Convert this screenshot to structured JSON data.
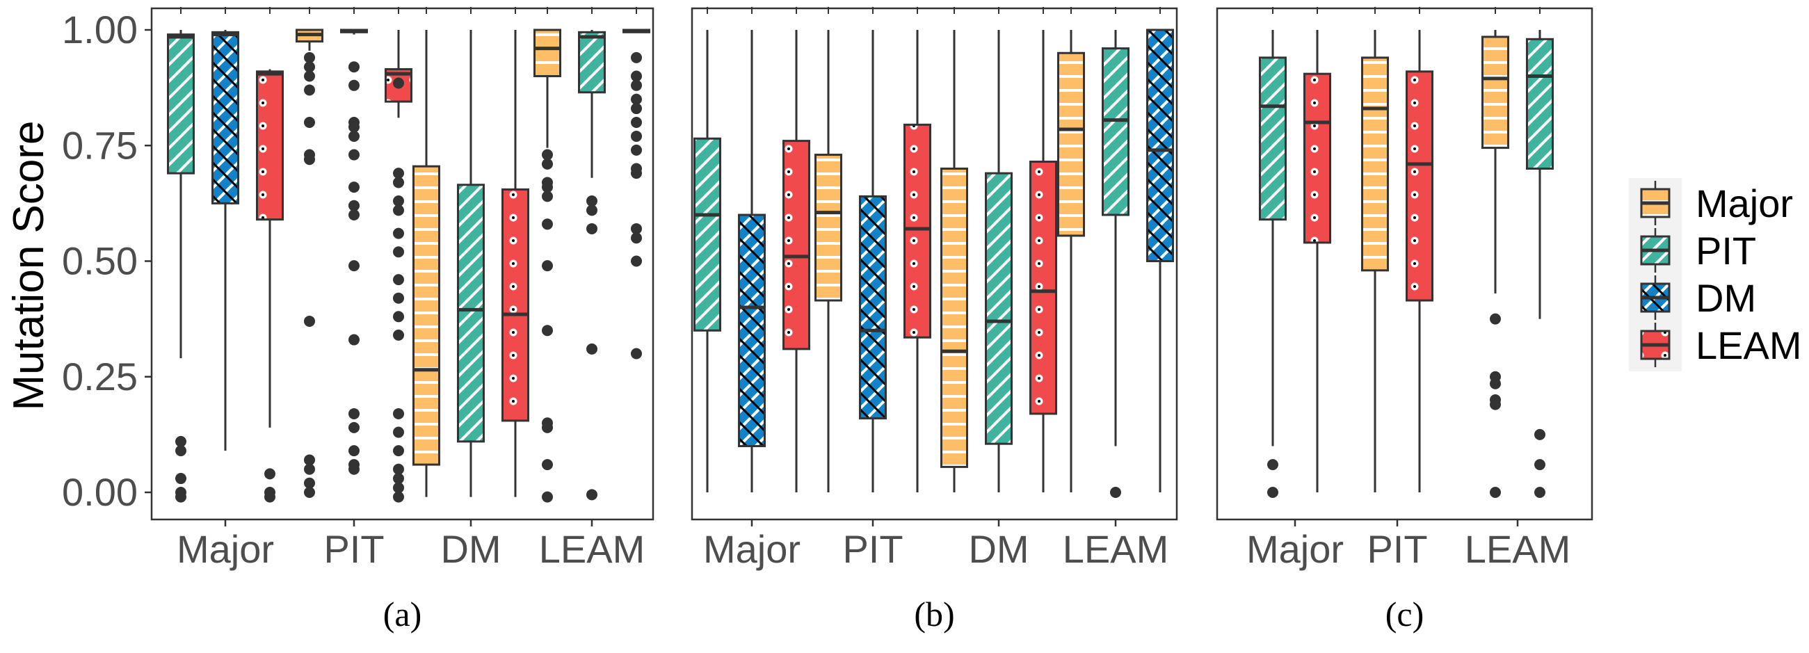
{
  "chart_data": {
    "type": "box",
    "ylabel": "Mutation Score",
    "ylim": [
      0,
      1
    ],
    "yticks": [
      0,
      0.25,
      0.5,
      0.75,
      1
    ],
    "ytick_labels": [
      "0.00",
      "0.25",
      "0.50",
      "0.75",
      "1.00"
    ],
    "colors": {
      "Major": "#FDBE67",
      "PIT": "#40B39E",
      "DM": "#1383C9",
      "LEAM": "#F04A4C"
    },
    "legend": {
      "position": "right",
      "entries": [
        "Major",
        "PIT",
        "DM",
        "LEAM"
      ]
    },
    "panels": [
      {
        "caption": "(a)",
        "categories": [
          "Major",
          "PIT",
          "DM",
          "LEAM"
        ],
        "groups": [
          {
            "category": "Major",
            "boxes": [
              {
                "series": "PIT",
                "q1": 0.69,
                "median": 0.985,
                "q3": 0.99,
                "lo": 0.29,
                "hi": 1.0,
                "outliers": [
                  0.11,
                  0.09,
                  0.03,
                  0.0,
                  -0.01
                ]
              },
              {
                "series": "DM",
                "q1": 0.625,
                "median": 0.99,
                "q3": 0.995,
                "lo": 0.09,
                "hi": 1.0,
                "outliers": []
              },
              {
                "series": "LEAM",
                "q1": 0.59,
                "median": 0.905,
                "q3": 0.91,
                "lo": 0.14,
                "hi": 0.915,
                "outliers": [
                  0.04,
                  0.0,
                  -0.01
                ]
              }
            ]
          },
          {
            "category": "PIT",
            "boxes": [
              {
                "series": "Major",
                "q1": 0.975,
                "median": 0.99,
                "q3": 1.0,
                "lo": 0.955,
                "hi": 1.0,
                "outliers": [
                  0.94,
                  0.92,
                  0.9,
                  0.87,
                  0.8,
                  0.73,
                  0.72,
                  0.37,
                  0.07,
                  0.05,
                  0.02,
                  0.0
                ]
              },
              {
                "series": "PIT",
                "q1": 0.995,
                "median": 0.998,
                "q3": 1.0,
                "lo": 0.99,
                "hi": 1.0,
                "outliers": [
                  0.92,
                  0.88,
                  0.8,
                  0.79,
                  0.77,
                  0.73,
                  0.66,
                  0.62,
                  0.6,
                  0.49,
                  0.33,
                  0.17,
                  0.14,
                  0.09,
                  0.06,
                  0.05
                ]
              },
              {
                "series": "LEAM",
                "q1": 0.845,
                "median": 0.905,
                "q3": 0.915,
                "lo": 0.81,
                "hi": 1.0,
                "outliers": [
                  0.885,
                  0.69,
                  0.67,
                  0.63,
                  0.61,
                  0.56,
                  0.52,
                  0.46,
                  0.42,
                  0.38,
                  0.34,
                  0.17,
                  0.13,
                  0.09,
                  0.05,
                  0.03,
                  0.01,
                  -0.01
                ]
              }
            ]
          },
          {
            "category": "DM",
            "boxes": [
              {
                "series": "Major",
                "q1": 0.06,
                "median": 0.265,
                "q3": 0.705,
                "lo": -0.01,
                "hi": 1.0,
                "outliers": []
              },
              {
                "series": "PIT",
                "q1": 0.11,
                "median": 0.395,
                "q3": 0.665,
                "lo": -0.01,
                "hi": 1.0,
                "outliers": []
              },
              {
                "series": "LEAM",
                "q1": 0.155,
                "median": 0.385,
                "q3": 0.655,
                "lo": -0.01,
                "hi": 1.0,
                "outliers": []
              }
            ]
          },
          {
            "category": "LEAM",
            "boxes": [
              {
                "series": "Major",
                "q1": 0.9,
                "median": 0.96,
                "q3": 1.0,
                "lo": 0.745,
                "hi": 1.0,
                "outliers": [
                  0.73,
                  0.71,
                  0.67,
                  0.66,
                  0.64,
                  0.58,
                  0.49,
                  0.35,
                  0.15,
                  0.14,
                  0.06,
                  -0.01
                ]
              },
              {
                "series": "PIT",
                "q1": 0.865,
                "median": 0.985,
                "q3": 0.995,
                "lo": 0.68,
                "hi": 1.0,
                "outliers": [
                  0.63,
                  0.61,
                  0.57,
                  0.31,
                  -0.005
                ]
              },
              {
                "series": "LEAM",
                "q1": 0.995,
                "median": 0.997,
                "q3": 1.0,
                "lo": 0.995,
                "hi": 1.0,
                "outliers": [
                  0.94,
                  0.9,
                  0.88,
                  0.85,
                  0.83,
                  0.8,
                  0.77,
                  0.74,
                  0.7,
                  0.69,
                  0.57,
                  0.55,
                  0.5,
                  0.3
                ]
              }
            ]
          }
        ]
      },
      {
        "caption": "(b)",
        "categories": [
          "Major",
          "PIT",
          "DM",
          "LEAM"
        ],
        "groups": [
          {
            "category": "Major",
            "boxes": [
              {
                "series": "PIT",
                "q1": 0.35,
                "median": 0.6,
                "q3": 0.765,
                "lo": 0.0,
                "hi": 1.0,
                "outliers": []
              },
              {
                "series": "DM",
                "q1": 0.1,
                "median": 0.4,
                "q3": 0.6,
                "lo": 0.0,
                "hi": 1.0,
                "outliers": []
              },
              {
                "series": "LEAM",
                "q1": 0.31,
                "median": 0.51,
                "q3": 0.76,
                "lo": 0.0,
                "hi": 1.0,
                "outliers": []
              }
            ]
          },
          {
            "category": "PIT",
            "boxes": [
              {
                "series": "Major",
                "q1": 0.415,
                "median": 0.605,
                "q3": 0.73,
                "lo": 0.0,
                "hi": 1.0,
                "outliers": []
              },
              {
                "series": "DM",
                "q1": 0.16,
                "median": 0.35,
                "q3": 0.64,
                "lo": 0.0,
                "hi": 1.0,
                "outliers": []
              },
              {
                "series": "LEAM",
                "q1": 0.335,
                "median": 0.57,
                "q3": 0.795,
                "lo": 0.0,
                "hi": 1.0,
                "outliers": []
              }
            ]
          },
          {
            "category": "DM",
            "boxes": [
              {
                "series": "Major",
                "q1": 0.055,
                "median": 0.305,
                "q3": 0.7,
                "lo": 0.0,
                "hi": 1.0,
                "outliers": []
              },
              {
                "series": "PIT",
                "q1": 0.105,
                "median": 0.37,
                "q3": 0.69,
                "lo": 0.0,
                "hi": 1.0,
                "outliers": []
              },
              {
                "series": "LEAM",
                "q1": 0.17,
                "median": 0.435,
                "q3": 0.715,
                "lo": 0.0,
                "hi": 1.0,
                "outliers": []
              }
            ]
          },
          {
            "category": "LEAM",
            "boxes": [
              {
                "series": "Major",
                "q1": 0.555,
                "median": 0.785,
                "q3": 0.95,
                "lo": 0.0,
                "hi": 1.0,
                "outliers": []
              },
              {
                "series": "PIT",
                "q1": 0.6,
                "median": 0.805,
                "q3": 0.96,
                "lo": 0.1,
                "hi": 1.0,
                "outliers": [
                  0.0
                ]
              },
              {
                "series": "DM",
                "q1": 0.5,
                "median": 0.74,
                "q3": 1.0,
                "lo": 0.0,
                "hi": 1.0,
                "outliers": []
              }
            ]
          }
        ]
      },
      {
        "caption": "(c)",
        "categories": [
          "Major",
          "PIT",
          "LEAM"
        ],
        "groups": [
          {
            "category": "Major",
            "boxes": [
              {
                "series": "PIT",
                "q1": 0.59,
                "median": 0.835,
                "q3": 0.94,
                "lo": 0.1,
                "hi": 1.0,
                "outliers": [
                  0.06,
                  0.0
                ]
              },
              {
                "series": "LEAM",
                "q1": 0.54,
                "median": 0.8,
                "q3": 0.905,
                "lo": 0.0,
                "hi": 1.0,
                "outliers": []
              }
            ]
          },
          {
            "category": "PIT",
            "boxes": [
              {
                "series": "Major",
                "q1": 0.48,
                "median": 0.83,
                "q3": 0.94,
                "lo": 0.0,
                "hi": 1.0,
                "outliers": []
              },
              {
                "series": "LEAM",
                "q1": 0.415,
                "median": 0.71,
                "q3": 0.91,
                "lo": 0.0,
                "hi": 1.0,
                "outliers": []
              }
            ]
          },
          {
            "category": "LEAM",
            "boxes": [
              {
                "series": "Major",
                "q1": 0.745,
                "median": 0.895,
                "q3": 0.985,
                "lo": 0.43,
                "hi": 1.0,
                "outliers": [
                  0.375,
                  0.25,
                  0.235,
                  0.2,
                  0.19,
                  0.0
                ]
              },
              {
                "series": "PIT",
                "q1": 0.7,
                "median": 0.9,
                "q3": 0.98,
                "lo": 0.375,
                "hi": 1.0,
                "outliers": [
                  0.125,
                  0.06,
                  0.0
                ]
              }
            ]
          }
        ]
      }
    ]
  }
}
